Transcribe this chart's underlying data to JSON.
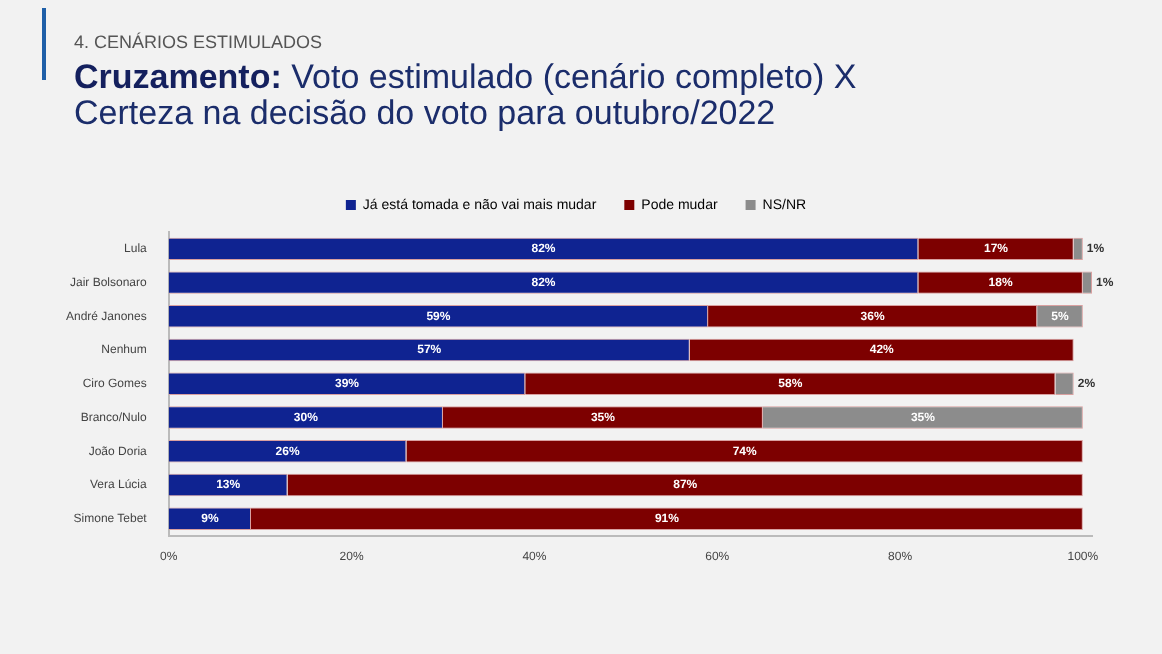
{
  "chart_data": {
    "type": "bar",
    "orientation": "horizontal",
    "stacked": true,
    "subtitle": "4. CENÁRIOS ESTIMULADOS",
    "title": "Cruzamento: Voto estimulado (cenário completo) X Certeza na decisão do voto para outubro/2022",
    "categories": [
      "Lula",
      "Jair Bolsonaro",
      "André Janones",
      "Nenhum",
      "Ciro Gomes",
      "Branco/Nulo",
      "João Doria",
      "Vera Lúcia",
      "Simone Tebet"
    ],
    "series": [
      {
        "name": "Já está tomada e não vai mais mudar",
        "color": "#0f2391",
        "values": [
          82,
          82,
          59,
          57,
          39,
          30,
          26,
          13,
          9
        ],
        "value_labels": [
          "82%",
          "82%",
          "59%",
          "57%",
          "39%",
          "30%",
          "26%",
          "13%",
          "9%"
        ]
      },
      {
        "name": "Pode mudar",
        "color": "#7d0000",
        "values": [
          17,
          18,
          36,
          42,
          58,
          35,
          74,
          87,
          91
        ],
        "value_labels": [
          "17%",
          "18%",
          "36%",
          "42%",
          "58%",
          "35%",
          "74%",
          "87%",
          "91%"
        ]
      },
      {
        "name": "NS/NR",
        "color": "#8c8c8c",
        "values": [
          1,
          1,
          5,
          null,
          2,
          35,
          null,
          null,
          null
        ],
        "value_labels": [
          "1%",
          "1%",
          "5%",
          null,
          "2%",
          "35%",
          null,
          null,
          null
        ]
      }
    ],
    "xlim": [
      0,
      101
    ],
    "xticks": [
      {
        "value": 0,
        "label": "0%"
      },
      {
        "value": 20,
        "label": "20%"
      },
      {
        "value": 40,
        "label": "40%"
      },
      {
        "value": 60,
        "label": "60%"
      },
      {
        "value": 80,
        "label": "80%"
      },
      {
        "value": 100,
        "label": "100%"
      }
    ],
    "grid": false,
    "legend": "top"
  }
}
